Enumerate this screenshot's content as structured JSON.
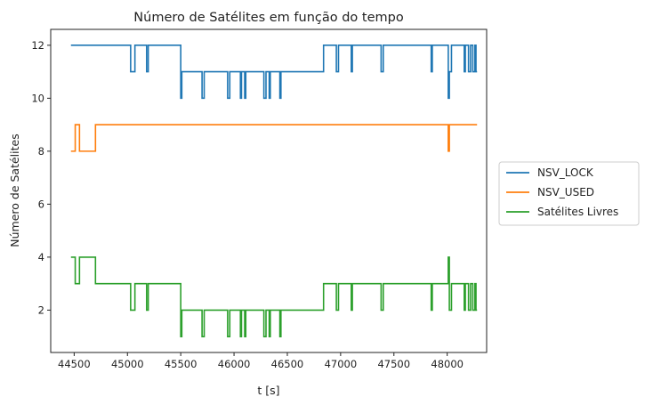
{
  "chart_data": {
    "type": "line",
    "title": "Número de Satélites em função do tempo",
    "xlabel": "t [s]",
    "ylabel": "Número de Satélites",
    "xlim": [
      44280,
      48370
    ],
    "ylim": [
      0.4,
      12.6
    ],
    "x_ticks": [
      44500,
      45000,
      45500,
      46000,
      46500,
      47000,
      47500,
      48000
    ],
    "y_ticks": [
      2,
      4,
      6,
      8,
      10,
      12
    ],
    "legend_position": "center-right",
    "grid": false,
    "series": [
      {
        "name": "NSV_LOCK",
        "color": "#1f77b4",
        "step": [
          [
            44470,
            12
          ],
          [
            45030,
            11
          ],
          [
            45070,
            12
          ],
          [
            45180,
            11
          ],
          [
            45195,
            12
          ],
          [
            45500,
            10
          ],
          [
            45510,
            11
          ],
          [
            45700,
            10
          ],
          [
            45720,
            11
          ],
          [
            45940,
            10
          ],
          [
            45960,
            11
          ],
          [
            46060,
            10
          ],
          [
            46070,
            11
          ],
          [
            46100,
            10
          ],
          [
            46110,
            11
          ],
          [
            46280,
            10
          ],
          [
            46300,
            11
          ],
          [
            46330,
            10
          ],
          [
            46340,
            11
          ],
          [
            46430,
            10
          ],
          [
            46440,
            11
          ],
          [
            46840,
            12
          ],
          [
            46960,
            11
          ],
          [
            46980,
            12
          ],
          [
            47100,
            11
          ],
          [
            47110,
            12
          ],
          [
            47380,
            11
          ],
          [
            47400,
            12
          ],
          [
            47850,
            11
          ],
          [
            47860,
            12
          ],
          [
            48010,
            10
          ],
          [
            48020,
            11
          ],
          [
            48040,
            12
          ],
          [
            48160,
            11
          ],
          [
            48170,
            12
          ],
          [
            48200,
            11
          ],
          [
            48220,
            12
          ],
          [
            48240,
            11
          ],
          [
            48260,
            12
          ],
          [
            48270,
            11
          ],
          [
            48280,
            11
          ]
        ]
      },
      {
        "name": "NSV_USED",
        "color": "#ff7f0e",
        "step": [
          [
            44470,
            8
          ],
          [
            44510,
            9
          ],
          [
            44550,
            8
          ],
          [
            44700,
            9
          ],
          [
            48010,
            8
          ],
          [
            48020,
            9
          ],
          [
            48280,
            9
          ]
        ]
      },
      {
        "name": "Satélites Livres",
        "color": "#2ca02c",
        "step": [
          [
            44470,
            4
          ],
          [
            44510,
            3
          ],
          [
            44550,
            4
          ],
          [
            44700,
            3
          ],
          [
            45030,
            2
          ],
          [
            45070,
            3
          ],
          [
            45180,
            2
          ],
          [
            45195,
            3
          ],
          [
            45500,
            1
          ],
          [
            45510,
            2
          ],
          [
            45700,
            1
          ],
          [
            45720,
            2
          ],
          [
            45940,
            1
          ],
          [
            45960,
            2
          ],
          [
            46060,
            1
          ],
          [
            46070,
            2
          ],
          [
            46100,
            1
          ],
          [
            46110,
            2
          ],
          [
            46280,
            1
          ],
          [
            46300,
            2
          ],
          [
            46330,
            1
          ],
          [
            46340,
            2
          ],
          [
            46430,
            1
          ],
          [
            46440,
            2
          ],
          [
            46840,
            3
          ],
          [
            46960,
            2
          ],
          [
            46980,
            3
          ],
          [
            47100,
            2
          ],
          [
            47110,
            3
          ],
          [
            47380,
            2
          ],
          [
            47400,
            3
          ],
          [
            47850,
            2
          ],
          [
            47860,
            3
          ],
          [
            48010,
            4
          ],
          [
            48020,
            2
          ],
          [
            48040,
            3
          ],
          [
            48160,
            2
          ],
          [
            48170,
            3
          ],
          [
            48200,
            2
          ],
          [
            48220,
            3
          ],
          [
            48240,
            2
          ],
          [
            48260,
            3
          ],
          [
            48270,
            2
          ],
          [
            48280,
            2
          ]
        ]
      }
    ]
  }
}
